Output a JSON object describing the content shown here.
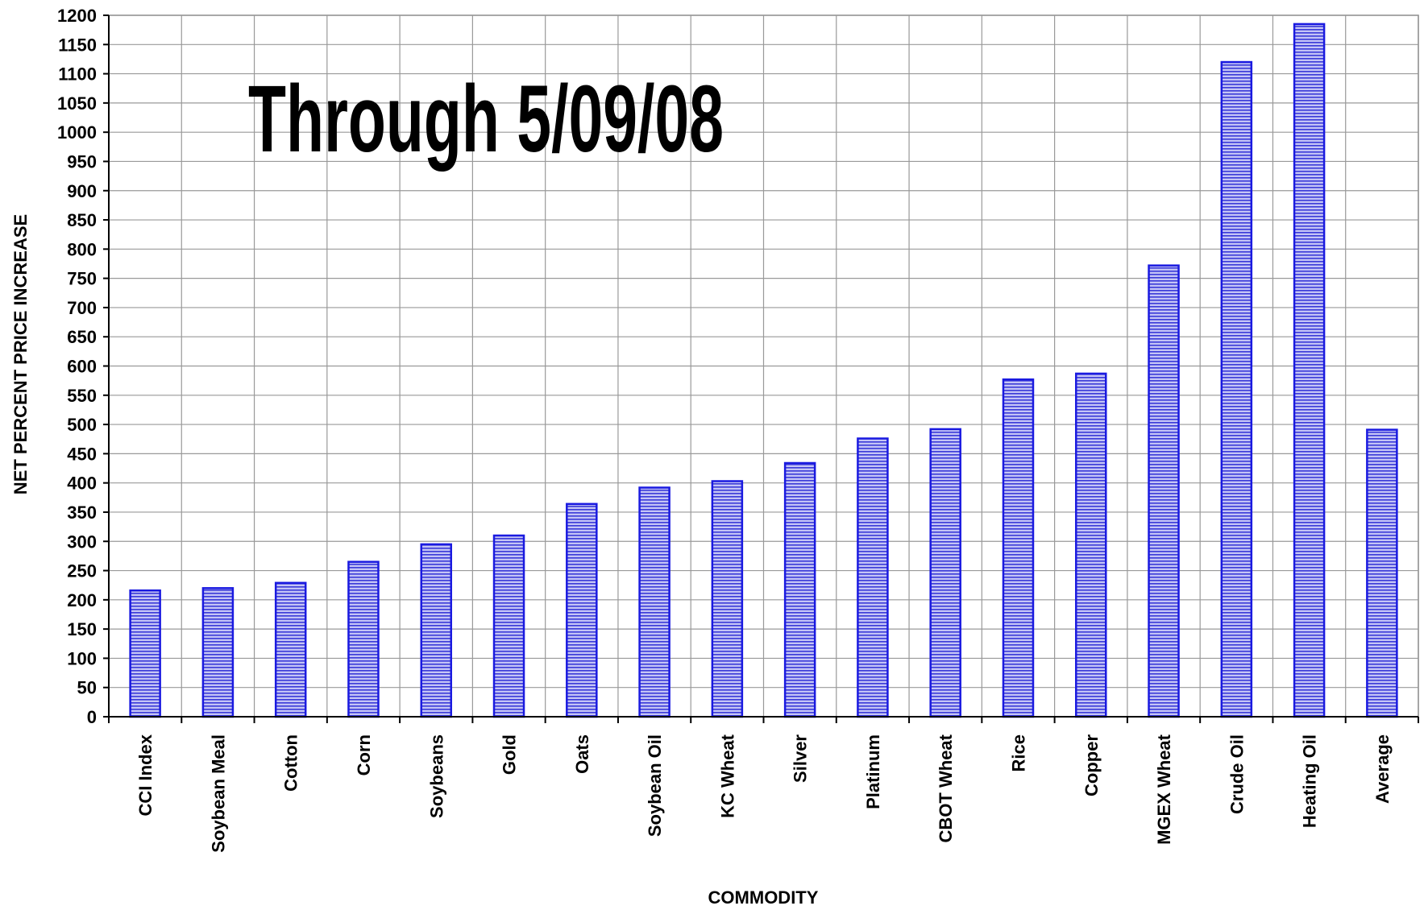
{
  "chart_data": {
    "type": "bar",
    "title": "Through 5/09/08",
    "xlabel": "COMMODITY",
    "ylabel": "NET PERCENT PRICE INCREASE",
    "ylim": [
      0,
      1200
    ],
    "ytick_step": 50,
    "grid": true,
    "legend": "none",
    "categories": [
      "CCI Index",
      "Soybean Meal",
      "Cotton",
      "Corn",
      "Soybeans",
      "Gold",
      "Oats",
      "Soybean Oil",
      "KC Wheat",
      "Silver",
      "Platinum",
      "CBOT Wheat",
      "Rice",
      "Copper",
      "MGEX Wheat",
      "Crude Oil",
      "Heating Oil",
      "Average"
    ],
    "values": [
      216,
      220,
      229,
      265,
      295,
      310,
      364,
      392,
      403,
      434,
      476,
      492,
      577,
      587,
      772,
      1120,
      1185,
      491
    ],
    "colors": {
      "bar_fill": "#b8b8f4",
      "bar_stripe": "#2a2ad8",
      "bar_edge": "#1a1ae0",
      "grid": "#999999",
      "axis": "#000000"
    }
  }
}
